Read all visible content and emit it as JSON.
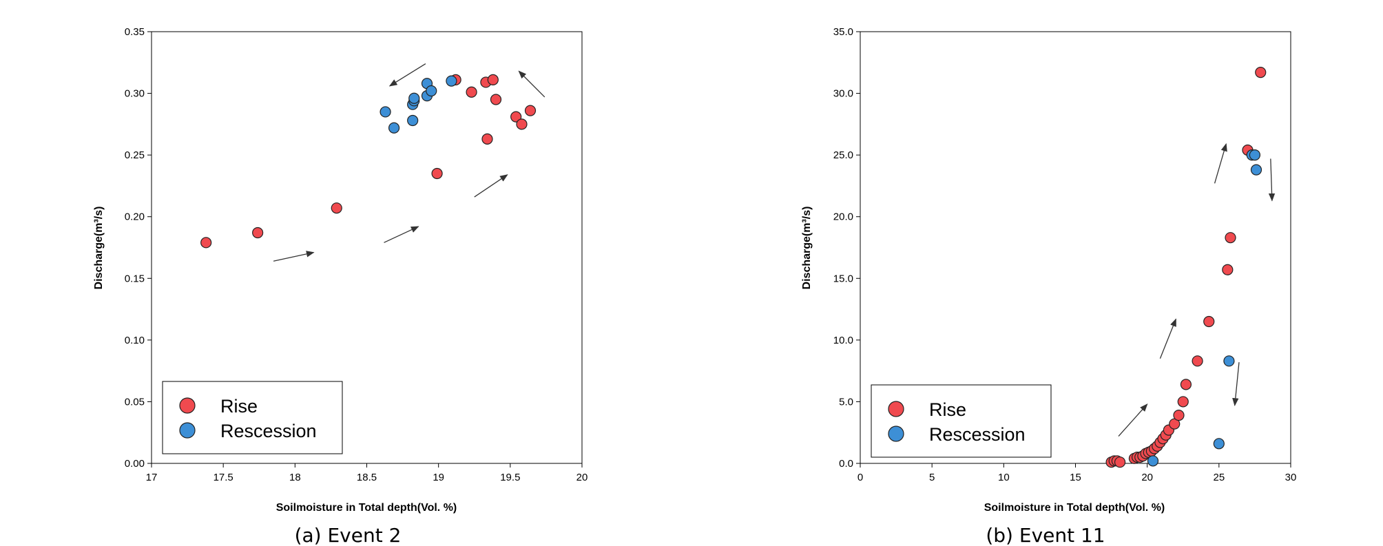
{
  "colors": {
    "rise": "#f04a4f",
    "recession": "#3d8fd6",
    "axis": "#000000",
    "arrow": "#333333"
  },
  "chart_data": [
    {
      "type": "scatter",
      "caption": "(a) Event 2",
      "xlabel": "Soilmoisture in Total depth(Vol. %)",
      "ylabel": "Discharge(m³/s)",
      "xlim": [
        17,
        20
      ],
      "ylim": [
        0,
        0.35
      ],
      "xticks": [
        17,
        17.5,
        18,
        18.5,
        19,
        19.5,
        20
      ],
      "xtick_labels": [
        "17",
        "17.5",
        "18",
        "18.5",
        "19",
        "19.5",
        "20"
      ],
      "yticks": [
        0,
        0.05,
        0.1,
        0.15,
        0.2,
        0.25,
        0.3,
        0.35
      ],
      "ytick_labels": [
        "0.00",
        "0.05",
        "0.10",
        "0.15",
        "0.20",
        "0.25",
        "0.30",
        "0.35"
      ],
      "grid": false,
      "legend": {
        "position": "bottom-left",
        "entries": [
          "Rise",
          "Rescession"
        ]
      },
      "arrows": [
        [
          [
            17.85,
            0.164
          ],
          [
            18.13,
            0.171
          ]
        ],
        [
          [
            18.62,
            0.179
          ],
          [
            18.86,
            0.192
          ]
        ],
        [
          [
            19.25,
            0.216
          ],
          [
            19.48,
            0.234
          ]
        ],
        [
          [
            19.74,
            0.297
          ],
          [
            19.56,
            0.318
          ]
        ],
        [
          [
            18.91,
            0.324
          ],
          [
            18.66,
            0.306
          ]
        ]
      ],
      "series": [
        {
          "name": "Rise",
          "x": [
            17.38,
            17.74,
            18.29,
            18.99,
            19.12,
            19.23,
            19.33,
            19.38,
            19.4,
            19.34,
            19.54,
            19.58,
            19.64
          ],
          "y": [
            0.179,
            0.187,
            0.207,
            0.235,
            0.311,
            0.301,
            0.309,
            0.311,
            0.295,
            0.263,
            0.281,
            0.275,
            0.286
          ]
        },
        {
          "name": "Rescession",
          "x": [
            18.63,
            18.69,
            18.82,
            18.82,
            18.83,
            18.83,
            18.92,
            18.92,
            18.95,
            19.09
          ],
          "y": [
            0.285,
            0.272,
            0.278,
            0.291,
            0.294,
            0.296,
            0.308,
            0.298,
            0.302,
            0.31
          ]
        }
      ]
    },
    {
      "type": "scatter",
      "caption": "(b) Event 11",
      "xlabel": "Soilmoisture in Total depth(Vol. %)",
      "ylabel": "Discharge(m³/s)",
      "xlim": [
        0,
        30
      ],
      "ylim": [
        0,
        35
      ],
      "xticks": [
        0,
        5,
        10,
        15,
        20,
        25,
        30
      ],
      "xtick_labels": [
        "0",
        "5",
        "10",
        "15",
        "20",
        "25",
        "30"
      ],
      "yticks": [
        0,
        5,
        10,
        15,
        20,
        25,
        30,
        35
      ],
      "ytick_labels": [
        "0.0",
        "5.0",
        "10.0",
        "15.0",
        "20.0",
        "25.0",
        "30.0",
        "35.0"
      ],
      "grid": false,
      "legend": {
        "position": "bottom-left",
        "entries": [
          "Rise",
          "Rescession"
        ]
      },
      "arrows": [
        [
          [
            18.0,
            2.2
          ],
          [
            20.0,
            4.8
          ]
        ],
        [
          [
            20.9,
            8.5
          ],
          [
            22.0,
            11.7
          ]
        ],
        [
          [
            24.7,
            22.7
          ],
          [
            25.5,
            25.9
          ]
        ],
        [
          [
            28.6,
            24.7
          ],
          [
            28.7,
            21.3
          ]
        ],
        [
          [
            26.4,
            8.2
          ],
          [
            26.1,
            4.7
          ]
        ]
      ],
      "series": [
        {
          "name": "Rise",
          "x": [
            17.5,
            17.7,
            17.9,
            18.1,
            19.1,
            19.3,
            19.5,
            19.7,
            19.9,
            20.1,
            20.3,
            20.5,
            20.7,
            20.9,
            21.1,
            21.3,
            21.5,
            21.9,
            22.2,
            22.5,
            22.7,
            23.5,
            24.3,
            25.6,
            25.8,
            27.0,
            27.9
          ],
          "y": [
            0.1,
            0.2,
            0.2,
            0.1,
            0.4,
            0.5,
            0.5,
            0.6,
            0.8,
            0.9,
            1.0,
            1.2,
            1.4,
            1.7,
            2.0,
            2.3,
            2.7,
            3.2,
            3.9,
            5.0,
            6.4,
            8.3,
            11.5,
            15.7,
            18.3,
            25.4,
            31.7
          ]
        },
        {
          "name": "Rescession",
          "x": [
            20.4,
            25.0,
            25.7,
            27.3,
            27.5,
            27.6
          ],
          "y": [
            0.2,
            1.6,
            8.3,
            25.0,
            25.0,
            23.8
          ]
        }
      ]
    }
  ]
}
